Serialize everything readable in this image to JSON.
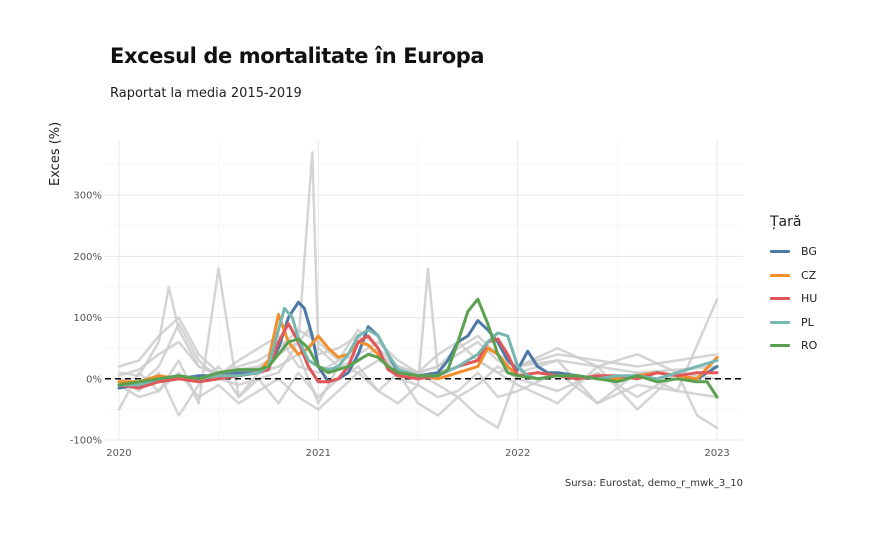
{
  "chart_data": {
    "type": "line",
    "title": "Excesul de mortalitate în Europa",
    "subtitle": "Raportat la media 2015-2019",
    "ylabel": "Exces (%)",
    "xlabel": "",
    "source": "Sursa: Eurostat, demo_r_mwk_3_10",
    "legend_title": "Țară",
    "legend_position": "right",
    "grid": true,
    "xlim": [
      2019.93,
      2023.13
    ],
    "ylim": [
      -100,
      390
    ],
    "x_ticks": [
      2020,
      2021,
      2022,
      2023
    ],
    "x_tick_labels": [
      "2020",
      "2021",
      "2022",
      "2023"
    ],
    "y_ticks": [
      -100,
      0,
      100,
      200,
      300
    ],
    "y_tick_labels": [
      "-100%",
      "0%",
      "100%",
      "200%",
      "300%"
    ],
    "reference_line": {
      "y": 0,
      "style": "dashed",
      "color": "#000000"
    },
    "background_series_color": "#cccccc",
    "background_series": [
      {
        "x": [
          2020.0,
          2020.1,
          2020.2,
          2020.25,
          2020.3,
          2020.4,
          2020.5,
          2020.6,
          2020.7,
          2020.8,
          2020.9,
          2020.95,
          2021.0,
          2021.1,
          2021.2,
          2021.3,
          2021.4,
          2021.5,
          2021.6,
          2021.7,
          2021.8,
          2021.9,
          2022.0,
          2022.2,
          2022.4,
          2022.6,
          2022.8,
          2023.0
        ],
        "y": [
          10,
          5,
          60,
          150,
          80,
          20,
          10,
          15,
          20,
          40,
          60,
          80,
          40,
          50,
          70,
          40,
          20,
          10,
          20,
          50,
          70,
          40,
          20,
          30,
          20,
          10,
          15,
          20
        ]
      },
      {
        "x": [
          2020.0,
          2020.1,
          2020.2,
          2020.3,
          2020.4,
          2020.5,
          2020.6,
          2020.7,
          2020.8,
          2020.9,
          2020.97,
          2021.0,
          2021.1,
          2021.2,
          2021.3,
          2021.4,
          2021.5,
          2021.6,
          2021.7,
          2021.8,
          2021.9,
          2022.0,
          2022.2,
          2022.4,
          2022.6,
          2022.8,
          2023.0
        ],
        "y": [
          0,
          -10,
          20,
          90,
          30,
          0,
          -10,
          0,
          10,
          60,
          370,
          50,
          20,
          10,
          30,
          20,
          10,
          -10,
          -30,
          -60,
          -80,
          10,
          30,
          -40,
          10,
          -20,
          130
        ]
      },
      {
        "x": [
          2020.0,
          2020.1,
          2020.2,
          2020.3,
          2020.4,
          2020.5,
          2020.6,
          2020.7,
          2020.8,
          2020.9,
          2021.0,
          2021.1,
          2021.2,
          2021.3,
          2021.4,
          2021.5,
          2021.55,
          2021.6,
          2021.8,
          2022.0,
          2022.2,
          2022.4,
          2022.6,
          2022.8,
          2022.9,
          2023.0
        ],
        "y": [
          -50,
          10,
          -20,
          30,
          -40,
          180,
          -30,
          10,
          20,
          40,
          -40,
          20,
          30,
          50,
          0,
          -10,
          180,
          10,
          30,
          -10,
          -40,
          20,
          -50,
          10,
          -60,
          -80
        ]
      },
      {
        "x": [
          2020.0,
          2020.1,
          2020.2,
          2020.3,
          2020.4,
          2020.5,
          2020.6,
          2020.7,
          2020.8,
          2020.9,
          2021.0,
          2021.1,
          2021.2,
          2021.3,
          2021.4,
          2021.5,
          2021.6,
          2021.7,
          2021.8,
          2021.9,
          2022.0,
          2022.2,
          2022.4,
          2022.6,
          2022.8,
          2023.0
        ],
        "y": [
          20,
          30,
          70,
          100,
          40,
          10,
          20,
          30,
          50,
          80,
          60,
          30,
          40,
          60,
          30,
          10,
          20,
          40,
          60,
          30,
          20,
          40,
          30,
          20,
          30,
          40
        ]
      },
      {
        "x": [
          2020.0,
          2020.1,
          2020.2,
          2020.3,
          2020.4,
          2020.5,
          2020.6,
          2020.7,
          2020.8,
          2020.9,
          2021.0,
          2021.1,
          2021.2,
          2021.3,
          2021.4,
          2021.5,
          2021.6,
          2021.7,
          2021.8,
          2021.9,
          2022.0,
          2022.2,
          2022.4,
          2022.6,
          2022.8,
          2023.0
        ],
        "y": [
          -10,
          -30,
          -20,
          10,
          -30,
          -10,
          -40,
          -20,
          0,
          -30,
          -50,
          -20,
          10,
          -20,
          -40,
          -10,
          -30,
          -20,
          10,
          -30,
          -20,
          10,
          -40,
          -10,
          -20,
          -30
        ]
      },
      {
        "x": [
          2020.0,
          2020.1,
          2020.2,
          2020.3,
          2020.4,
          2020.5,
          2020.6,
          2020.7,
          2020.8,
          2020.9,
          2021.0,
          2021.1,
          2021.2,
          2021.3,
          2021.4,
          2021.5,
          2021.6,
          2021.7,
          2021.8,
          2021.9,
          2022.0,
          2022.2,
          2022.4,
          2022.6,
          2022.8,
          2023.0
        ],
        "y": [
          5,
          15,
          40,
          60,
          20,
          5,
          30,
          50,
          70,
          20,
          10,
          30,
          80,
          50,
          20,
          10,
          40,
          60,
          30,
          10,
          20,
          50,
          20,
          40,
          10,
          30
        ]
      },
      {
        "x": [
          2020.0,
          2020.1,
          2020.2,
          2020.3,
          2020.4,
          2020.5,
          2020.6,
          2020.7,
          2020.8,
          2020.9,
          2021.0,
          2021.1,
          2021.2,
          2021.3,
          2021.4,
          2021.5,
          2021.6,
          2021.7,
          2021.8,
          2021.9,
          2022.0,
          2022.2,
          2022.4,
          2022.6,
          2022.8,
          2023.0
        ],
        "y": [
          0,
          -20,
          10,
          -60,
          -10,
          20,
          -30,
          0,
          -40,
          10,
          -30,
          0,
          20,
          -20,
          10,
          -40,
          -60,
          -30,
          -10,
          20,
          0,
          -20,
          10,
          -30,
          10,
          0
        ]
      }
    ],
    "series": [
      {
        "name": "BG",
        "color": "#4e79a7",
        "x": [
          2020.0,
          2020.1,
          2020.2,
          2020.3,
          2020.4,
          2020.5,
          2020.6,
          2020.7,
          2020.75,
          2020.8,
          2020.85,
          2020.9,
          2020.93,
          2020.97,
          2021.0,
          2021.05,
          2021.1,
          2021.15,
          2021.2,
          2021.25,
          2021.3,
          2021.35,
          2021.4,
          2021.5,
          2021.6,
          2021.65,
          2021.7,
          2021.75,
          2021.8,
          2021.85,
          2021.9,
          2021.95,
          2022.0,
          2022.05,
          2022.1,
          2022.15,
          2022.2,
          2022.3,
          2022.4,
          2022.5,
          2022.6,
          2022.7,
          2022.8,
          2022.9,
          2023.0
        ],
        "y": [
          -15,
          -10,
          -5,
          0,
          5,
          5,
          10,
          10,
          20,
          50,
          100,
          125,
          115,
          70,
          20,
          -5,
          0,
          10,
          40,
          85,
          70,
          40,
          10,
          5,
          10,
          30,
          60,
          70,
          95,
          80,
          60,
          30,
          15,
          45,
          20,
          10,
          10,
          5,
          0,
          0,
          5,
          10,
          5,
          0,
          20
        ]
      },
      {
        "name": "CZ",
        "color": "#f28e2b",
        "x": [
          2020.0,
          2020.1,
          2020.2,
          2020.3,
          2020.4,
          2020.5,
          2020.6,
          2020.7,
          2020.75,
          2020.8,
          2020.85,
          2020.9,
          2020.95,
          2021.0,
          2021.05,
          2021.1,
          2021.15,
          2021.2,
          2021.25,
          2021.3,
          2021.35,
          2021.4,
          2021.5,
          2021.6,
          2021.7,
          2021.8,
          2021.85,
          2021.9,
          2021.95,
          2022.0,
          2022.1,
          2022.2,
          2022.3,
          2022.4,
          2022.5,
          2022.6,
          2022.7,
          2022.8,
          2022.9,
          2023.0
        ],
        "y": [
          -5,
          -5,
          5,
          0,
          0,
          5,
          5,
          10,
          30,
          105,
          60,
          40,
          50,
          70,
          50,
          35,
          40,
          60,
          55,
          40,
          20,
          10,
          5,
          0,
          10,
          20,
          50,
          40,
          20,
          5,
          10,
          5,
          0,
          5,
          0,
          5,
          10,
          5,
          0,
          35
        ]
      },
      {
        "name": "HU",
        "color": "#e15759",
        "x": [
          2020.0,
          2020.1,
          2020.2,
          2020.3,
          2020.4,
          2020.5,
          2020.6,
          2020.7,
          2020.75,
          2020.8,
          2020.85,
          2020.9,
          2020.95,
          2021.0,
          2021.05,
          2021.1,
          2021.15,
          2021.2,
          2021.25,
          2021.3,
          2021.35,
          2021.4,
          2021.5,
          2021.6,
          2021.7,
          2021.8,
          2021.85,
          2021.9,
          2021.95,
          2022.0,
          2022.1,
          2022.2,
          2022.3,
          2022.4,
          2022.5,
          2022.6,
          2022.7,
          2022.8,
          2022.9,
          2023.0
        ],
        "y": [
          -10,
          -15,
          -5,
          0,
          -5,
          0,
          5,
          10,
          15,
          60,
          90,
          60,
          20,
          -5,
          -5,
          0,
          20,
          60,
          70,
          50,
          15,
          5,
          0,
          5,
          20,
          30,
          60,
          65,
          40,
          5,
          10,
          5,
          0,
          5,
          5,
          0,
          10,
          5,
          10,
          10
        ]
      },
      {
        "name": "PL",
        "color": "#76b7b2",
        "x": [
          2020.0,
          2020.1,
          2020.2,
          2020.3,
          2020.4,
          2020.5,
          2020.6,
          2020.7,
          2020.75,
          2020.8,
          2020.83,
          2020.87,
          2020.9,
          2020.95,
          2021.0,
          2021.05,
          2021.1,
          2021.15,
          2021.2,
          2021.25,
          2021.3,
          2021.35,
          2021.4,
          2021.5,
          2021.6,
          2021.7,
          2021.8,
          2021.85,
          2021.9,
          2021.95,
          2022.0,
          2022.05,
          2022.1,
          2022.2,
          2022.3,
          2022.4,
          2022.5,
          2022.6,
          2022.7,
          2022.8,
          2022.9,
          2023.0
        ],
        "y": [
          -10,
          -10,
          0,
          5,
          0,
          5,
          5,
          10,
          20,
          80,
          115,
          100,
          65,
          30,
          20,
          15,
          20,
          40,
          70,
          80,
          70,
          40,
          15,
          5,
          5,
          20,
          40,
          60,
          75,
          70,
          20,
          5,
          0,
          5,
          5,
          0,
          5,
          5,
          0,
          10,
          20,
          30
        ]
      },
      {
        "name": "RO",
        "color": "#59a14f",
        "x": [
          2020.0,
          2020.1,
          2020.2,
          2020.3,
          2020.4,
          2020.5,
          2020.6,
          2020.7,
          2020.75,
          2020.8,
          2020.85,
          2020.9,
          2020.95,
          2021.0,
          2021.05,
          2021.1,
          2021.15,
          2021.2,
          2021.25,
          2021.3,
          2021.35,
          2021.4,
          2021.5,
          2021.6,
          2021.65,
          2021.7,
          2021.75,
          2021.8,
          2021.85,
          2021.9,
          2021.95,
          2022.0,
          2022.1,
          2022.2,
          2022.3,
          2022.4,
          2022.5,
          2022.6,
          2022.7,
          2022.8,
          2022.9,
          2022.95,
          2023.0
        ],
        "y": [
          -10,
          -5,
          0,
          5,
          0,
          10,
          15,
          15,
          20,
          40,
          60,
          65,
          50,
          20,
          10,
          15,
          20,
          30,
          40,
          35,
          20,
          10,
          5,
          5,
          15,
          60,
          110,
          130,
          90,
          40,
          10,
          5,
          0,
          5,
          5,
          0,
          -5,
          5,
          -5,
          0,
          -5,
          -5,
          -30
        ]
      }
    ]
  }
}
